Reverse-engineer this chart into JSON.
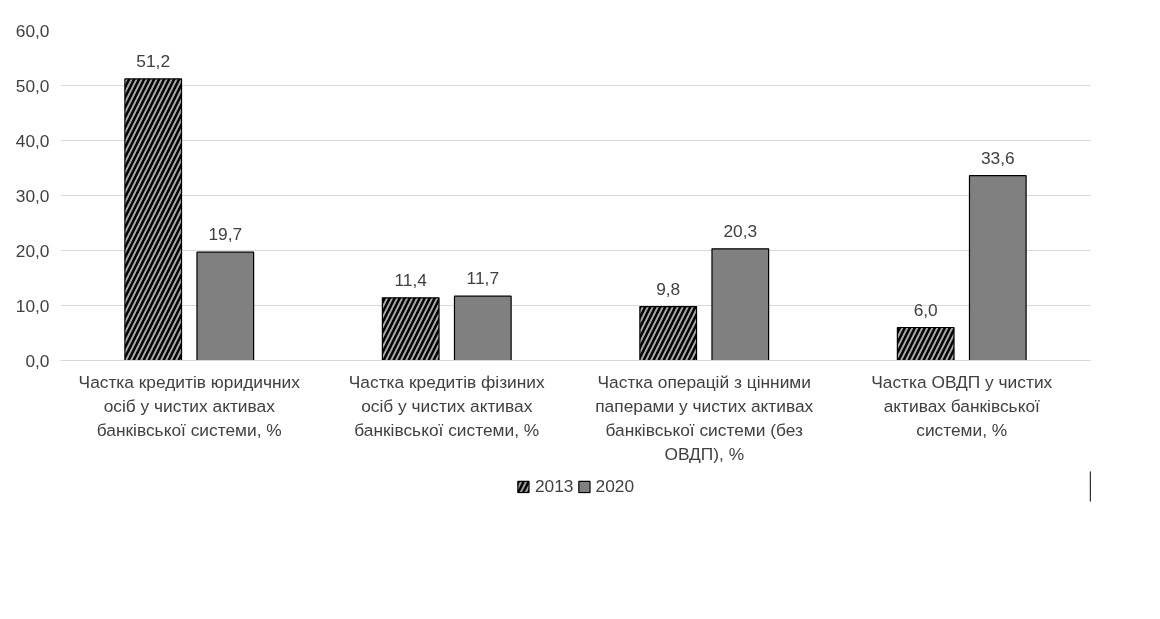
{
  "chart_data": {
    "type": "bar",
    "categories": [
      "Частка кредитів юридичних осіб у чистих активах банківської системи, %",
      "Частка кредитів фізиних осіб у чистих активах банківської системи, %",
      "Частка операцій з цінними паперами у чистих активах банківської системи (без ОВДП), %",
      "Частка ОВДП у чистих активах банківської системи, %"
    ],
    "series": [
      {
        "name": "2013",
        "color": "#a6a6a6",
        "values": [
          51.2,
          11.4,
          9.8,
          6.0
        ],
        "value_labels": [
          "51,2",
          "11,4",
          "9,8",
          "6,0"
        ]
      },
      {
        "name": "2020",
        "color": "#808080",
        "values": [
          19.7,
          11.7,
          20.3,
          33.6
        ],
        "value_labels": [
          "19,7",
          "11,7",
          "20,3",
          "33,6"
        ]
      }
    ],
    "ylim": [
      0,
      60
    ],
    "yticks": [
      {
        "value": 0,
        "label": "0,0"
      },
      {
        "value": 10,
        "label": "10,0"
      },
      {
        "value": 20,
        "label": "20,0"
      },
      {
        "value": 30,
        "label": "30,0"
      },
      {
        "value": 40,
        "label": "40,0"
      },
      {
        "value": 50,
        "label": "50,0"
      },
      {
        "value": 60,
        "label": "60,0"
      }
    ],
    "grid": "y",
    "legend": "bottom"
  }
}
